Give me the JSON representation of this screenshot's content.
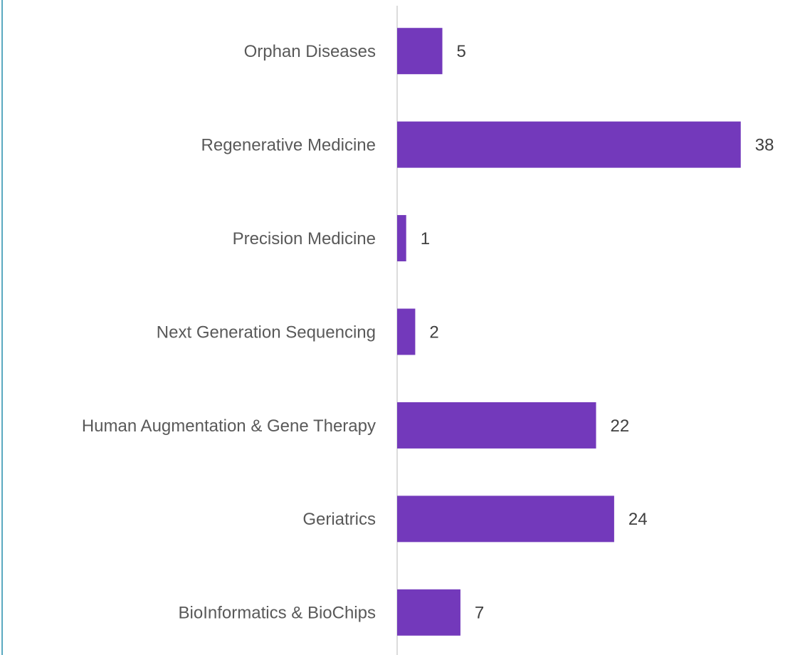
{
  "chart_data": {
    "type": "bar",
    "orientation": "horizontal",
    "categories": [
      "Orphan Diseases",
      "Regenerative Medicine",
      "Precision Medicine",
      "Next Generation Sequencing",
      "Human Augmentation & Gene Therapy",
      "Geriatrics",
      "BioInformatics & BioChips"
    ],
    "values": [
      5,
      38,
      1,
      2,
      22,
      24,
      7
    ],
    "color": "#7339bb",
    "xlim": [
      0,
      44
    ]
  }
}
